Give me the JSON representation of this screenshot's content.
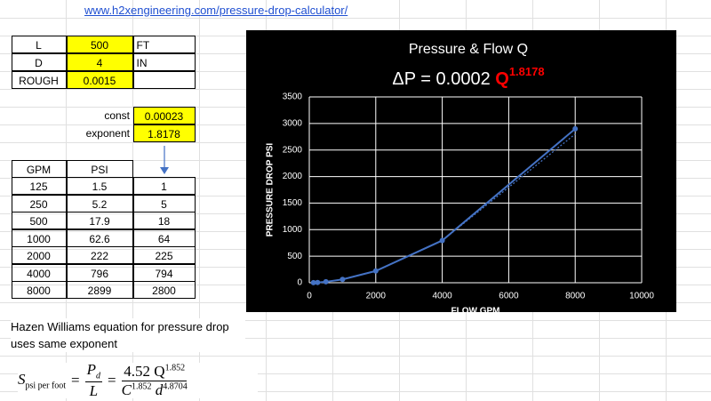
{
  "link": "www.h2xengineering.com/pressure-drop-calculator/",
  "inputs": [
    [
      "L",
      "500",
      "FT"
    ],
    [
      "D",
      "4",
      "IN"
    ],
    [
      "ROUGH",
      "0.0015"
    ]
  ],
  "fit": [
    [
      "const",
      "0.00023"
    ],
    [
      "exponent",
      "1.8178"
    ]
  ],
  "table": {
    "header": [
      "GPM",
      "PSI"
    ],
    "rows": [
      [
        "125",
        "1.5",
        "1"
      ],
      [
        "250",
        "5.2",
        "5"
      ],
      [
        "500",
        "17.9",
        "18"
      ],
      [
        "1000",
        "62.6",
        "64"
      ],
      [
        "2000",
        "222",
        "225"
      ],
      [
        "4000",
        "796",
        "794"
      ],
      [
        "8000",
        "2899",
        "2800"
      ]
    ]
  },
  "note": [
    "Hazen Williams equation for pressure drop",
    "uses same exponent"
  ],
  "formula": {
    "lhs": "S",
    "lhs_sub": "psi per foot",
    "num": "P",
    "num_sub": "d",
    "den": "L",
    "coef": "4.52 Q",
    "coef_exp": "1.852",
    "c": "C",
    "c_exp": "1.852",
    "d": "d",
    "d_exp": "4.8704"
  },
  "chart_data": {
    "type": "line",
    "title": "Pressure & Flow Q",
    "equation": {
      "text": "ΔP = 0.0002",
      "var": "Q",
      "exponent": "1.8178",
      "color": "#ff0000"
    },
    "x_label": "FLOW GPM",
    "y_label": "PRESSURE DROP PSI",
    "x": [
      125,
      250,
      500,
      1000,
      2000,
      4000,
      8000
    ],
    "series": [
      {
        "color": "#4472c4",
        "values": [
          1.5,
          5.2,
          17.9,
          62.6,
          222,
          796,
          2899
        ],
        "markers": true,
        "dashed": false
      },
      {
        "color": "#4472c4",
        "values": [
          1,
          5,
          18,
          64,
          225,
          794,
          2800
        ],
        "markers": false,
        "dashed": true
      }
    ],
    "xlim": [
      0,
      10000
    ],
    "xticks": [
      0,
      2000,
      4000,
      6000,
      8000,
      10000
    ],
    "ylim": [
      0,
      3500
    ],
    "yticks": [
      0,
      500,
      1000,
      1500,
      2000,
      2500,
      3000,
      3500
    ],
    "grid": true,
    "background": "#000000"
  }
}
